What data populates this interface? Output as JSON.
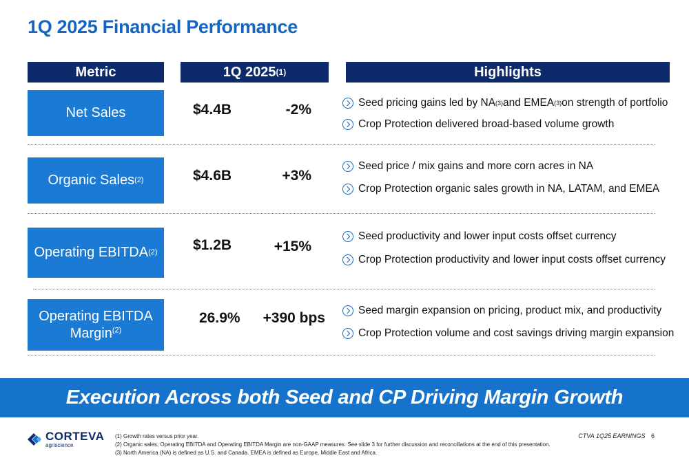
{
  "title": "1Q 2025 Financial Performance",
  "headers": {
    "metric": "Metric",
    "period": "1Q 2025",
    "period_note": "(1)",
    "highlights": "Highlights"
  },
  "rows": [
    {
      "metric": "Net Sales",
      "metric_note": "",
      "value": "$4.4B",
      "change": "-2%",
      "highlights": [
        {
          "parts": [
            "Seed pricing gains led by NA",
            "(3)",
            " and EMEA",
            "(3)",
            " on strength of portfolio"
          ]
        },
        {
          "parts": [
            "Crop Protection delivered broad-based volume growth"
          ]
        }
      ]
    },
    {
      "metric": "Organic Sales",
      "metric_note": "(2)",
      "value": "$4.6B",
      "change": "+3%",
      "highlights": [
        {
          "parts": [
            "Seed price / mix gains and more corn acres in NA"
          ]
        },
        {
          "parts": [
            "Crop Protection organic sales growth in NA, LATAM, and EMEA"
          ]
        }
      ]
    },
    {
      "metric": "Operating EBITDA",
      "metric_note": "(2)",
      "value": "$1.2B",
      "change": "+15%",
      "highlights": [
        {
          "parts": [
            "Seed productivity and lower input costs offset currency"
          ]
        },
        {
          "parts": [
            "Crop Protection productivity and lower input costs offset currency"
          ]
        }
      ]
    },
    {
      "metric_line1": "Operating EBITDA",
      "metric_line2": "Margin",
      "metric_note": "(2)",
      "value": "26.9%",
      "change": "+390 bps",
      "highlights": [
        {
          "parts": [
            "Seed margin expansion on pricing, product mix, and productivity"
          ]
        },
        {
          "parts": [
            "Crop Protection volume and cost savings driving margin expansion"
          ]
        }
      ]
    }
  ],
  "banner": "Execution Across both Seed and CP Driving Margin Growth",
  "logo": {
    "name": "CORTEVA",
    "tagline": "agriscience",
    "color": "#0d2a6b",
    "accent": "#1573cc"
  },
  "footnotes": [
    "(1)  Growth rates versus prior year.",
    "(2)  Organic sales, Operating EBITDA and Operating EBITDA Margin are non-GAAP measures. See slide 3 for further discussion and reconciliations at the end of this presentation.",
    "(3)  North America (NA) is defined as U.S. and Canada. EMEA is defined as Europe, Middle East and Africa."
  ],
  "footer": {
    "label": "CTVA 1Q25 EARNINGS",
    "page": "6"
  }
}
